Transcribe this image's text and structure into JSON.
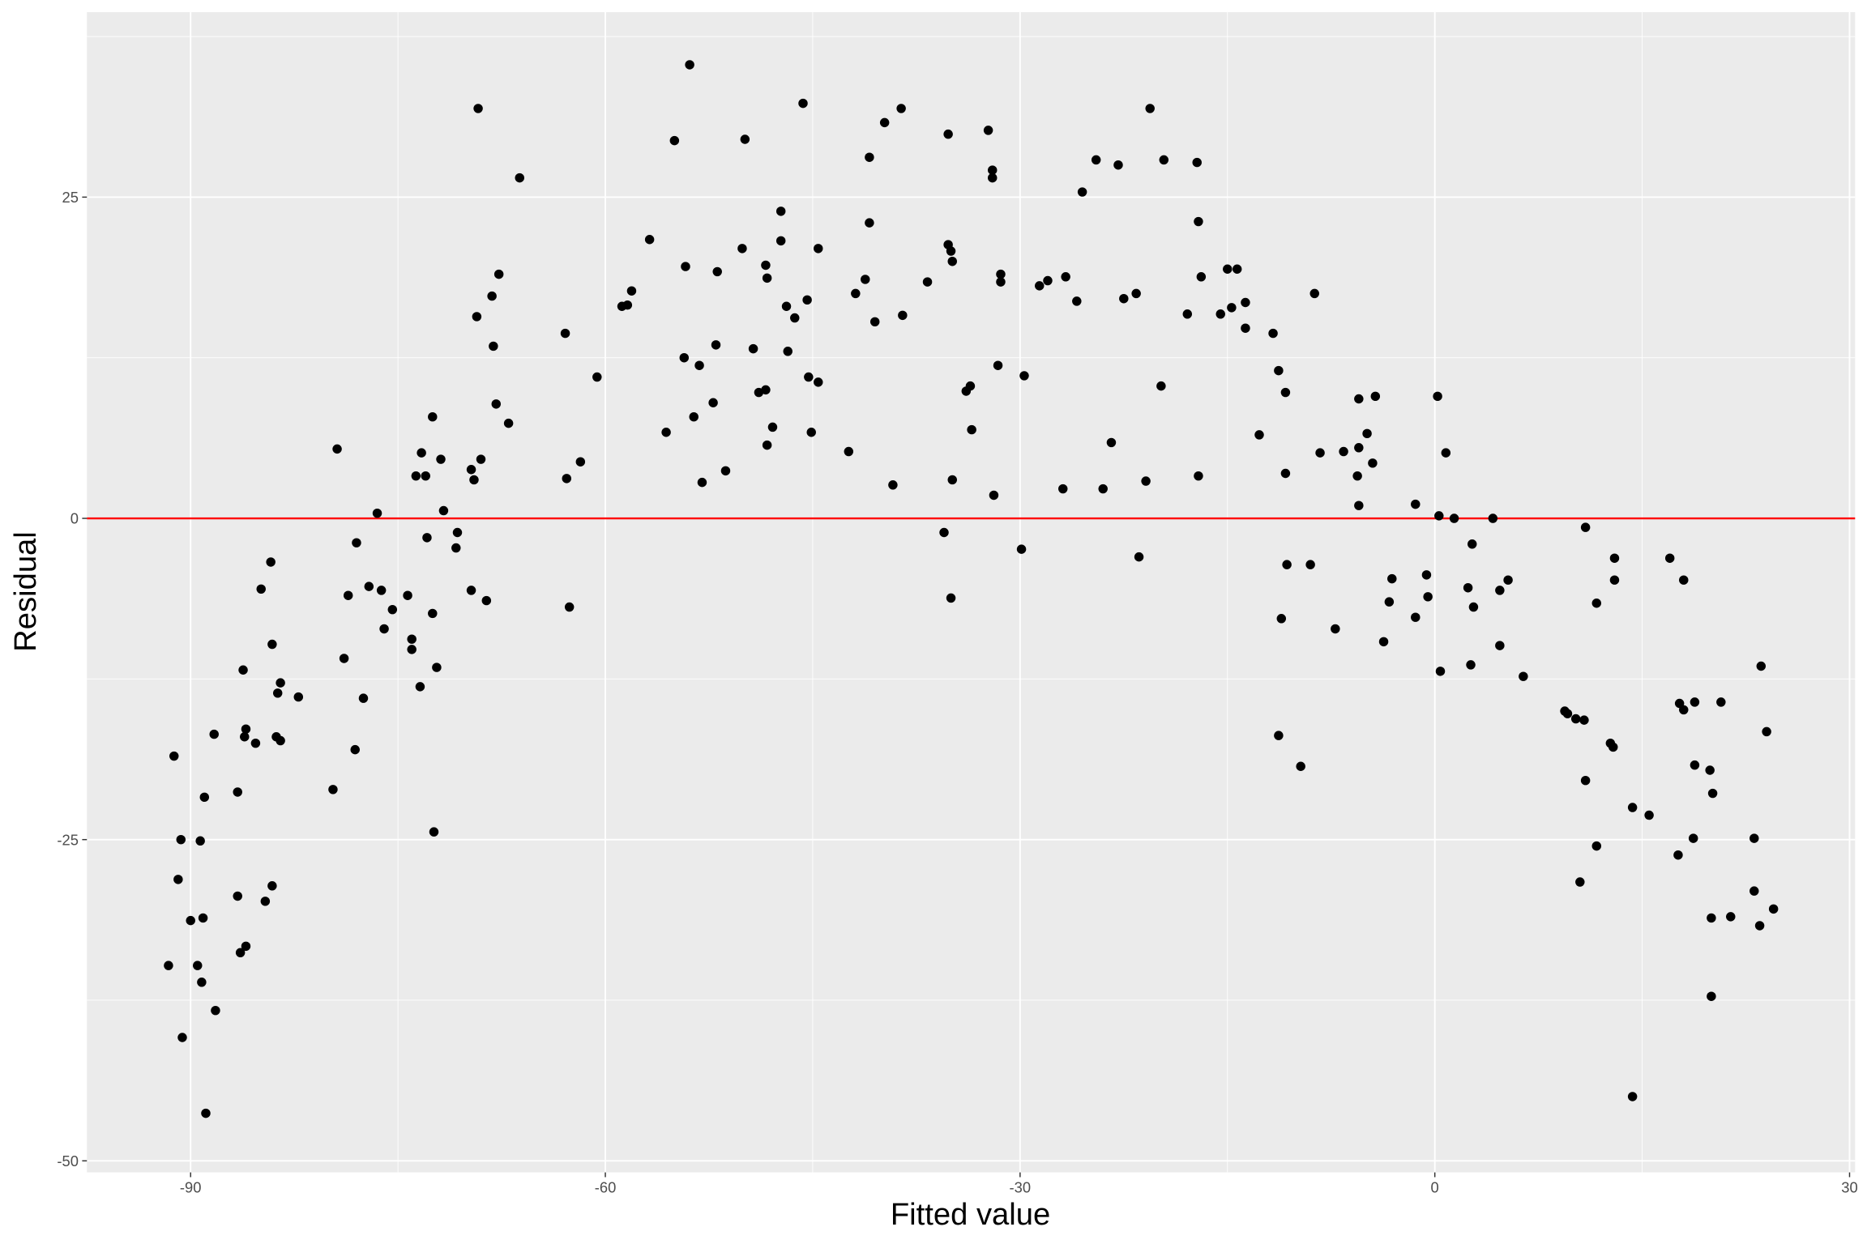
{
  "chart_data": {
    "type": "scatter",
    "title": "",
    "xlabel": "Fitted value",
    "ylabel": "Residual",
    "xlim": [
      -97.5,
      30.4
    ],
    "ylim": [
      -50.9,
      39.4
    ],
    "x_ticks": [
      -90,
      -60,
      -30,
      0,
      30
    ],
    "y_ticks": [
      25,
      0,
      -25,
      -50
    ],
    "x_tick_labels": [
      "-90",
      "-60",
      "-30",
      "0",
      "30"
    ],
    "y_tick_labels": [
      "25",
      "0",
      "-25",
      "-50"
    ],
    "grid": true,
    "colors": {
      "panel": "#EBEBEB",
      "grid": "#FFFFFF",
      "points": "#000000",
      "reference_line": "#FF0000"
    },
    "reference_line": {
      "orientation": "horizontal",
      "y": 0
    },
    "points": [
      [
        -91.6,
        -34.8
      ],
      [
        -91.2,
        -18.5
      ],
      [
        -90.9,
        -28.1
      ],
      [
        -90.7,
        -25.0
      ],
      [
        -90.6,
        -40.4
      ],
      [
        -90.0,
        -31.3
      ],
      [
        -89.5,
        -34.8
      ],
      [
        -89.3,
        -25.1
      ],
      [
        -89.2,
        -36.1
      ],
      [
        -89.1,
        -31.1
      ],
      [
        -89.0,
        -21.7
      ],
      [
        -88.9,
        -46.3
      ],
      [
        -88.3,
        -16.8
      ],
      [
        -88.2,
        -38.3
      ],
      [
        -86.6,
        -21.3
      ],
      [
        -86.6,
        -29.4
      ],
      [
        -86.4,
        -33.8
      ],
      [
        -86.2,
        -11.8
      ],
      [
        -86.0,
        -16.4
      ],
      [
        -86.1,
        -17.0
      ],
      [
        -86.0,
        -33.3
      ],
      [
        -85.3,
        -17.5
      ],
      [
        -84.9,
        -5.5
      ],
      [
        -84.6,
        -29.8
      ],
      [
        -84.2,
        -3.4
      ],
      [
        -84.1,
        -9.8
      ],
      [
        -84.1,
        -28.6
      ],
      [
        -83.8,
        -17.0
      ],
      [
        -83.7,
        -13.6
      ],
      [
        -83.5,
        -12.8
      ],
      [
        -83.5,
        -17.3
      ],
      [
        -82.2,
        -13.9
      ],
      [
        -79.7,
        -21.1
      ],
      [
        -79.4,
        5.4
      ],
      [
        -78.9,
        -10.9
      ],
      [
        -78.6,
        -6.0
      ],
      [
        -78.1,
        -18.0
      ],
      [
        -78.0,
        -1.9
      ],
      [
        -77.5,
        -14.0
      ],
      [
        -77.1,
        -5.3
      ],
      [
        -76.5,
        0.4
      ],
      [
        -76.2,
        -5.6
      ],
      [
        -76.0,
        -8.6
      ],
      [
        -75.4,
        -7.1
      ],
      [
        -74.3,
        -6.0
      ],
      [
        -74.0,
        -9.4
      ],
      [
        -74.0,
        -10.2
      ],
      [
        -73.7,
        3.3
      ],
      [
        -73.4,
        -13.1
      ],
      [
        -73.3,
        5.1
      ],
      [
        -73.0,
        3.3
      ],
      [
        -72.9,
        -1.5
      ],
      [
        -72.5,
        7.9
      ],
      [
        -72.5,
        -7.4
      ],
      [
        -72.4,
        -24.4
      ],
      [
        -72.2,
        -11.6
      ],
      [
        -71.9,
        4.6
      ],
      [
        -71.7,
        0.6
      ],
      [
        -70.8,
        -2.3
      ],
      [
        -70.7,
        -1.1
      ],
      [
        -69.7,
        3.8
      ],
      [
        -69.7,
        -5.6
      ],
      [
        -69.5,
        3.0
      ],
      [
        -69.3,
        15.7
      ],
      [
        -69.2,
        31.9
      ],
      [
        -69.0,
        4.6
      ],
      [
        -68.6,
        -6.4
      ],
      [
        -68.2,
        17.3
      ],
      [
        -68.1,
        13.4
      ],
      [
        -67.9,
        8.9
      ],
      [
        -67.7,
        19.0
      ],
      [
        -67.0,
        7.4
      ],
      [
        -66.2,
        26.5
      ],
      [
        -62.9,
        14.4
      ],
      [
        -62.8,
        3.1
      ],
      [
        -62.6,
        -6.9
      ],
      [
        -61.8,
        4.4
      ],
      [
        -60.6,
        11.0
      ],
      [
        -58.8,
        16.5
      ],
      [
        -58.4,
        16.6
      ],
      [
        -58.1,
        17.7
      ],
      [
        -56.8,
        21.7
      ],
      [
        -55.6,
        6.7
      ],
      [
        -55.0,
        29.4
      ],
      [
        -54.3,
        12.5
      ],
      [
        -54.2,
        19.6
      ],
      [
        -53.9,
        35.3
      ],
      [
        -53.6,
        7.9
      ],
      [
        -53.2,
        11.9
      ],
      [
        -53.0,
        2.8
      ],
      [
        -52.2,
        9.0
      ],
      [
        -52.0,
        13.5
      ],
      [
        -51.9,
        19.2
      ],
      [
        -51.3,
        3.7
      ],
      [
        -50.1,
        21.0
      ],
      [
        -49.9,
        29.5
      ],
      [
        -49.3,
        13.2
      ],
      [
        -48.9,
        9.8
      ],
      [
        -48.4,
        10.0
      ],
      [
        -48.4,
        19.7
      ],
      [
        -48.3,
        18.7
      ],
      [
        -48.3,
        5.7
      ],
      [
        -47.9,
        7.1
      ],
      [
        -47.3,
        23.9
      ],
      [
        -47.3,
        21.6
      ],
      [
        -46.9,
        16.5
      ],
      [
        -46.8,
        13.0
      ],
      [
        -46.3,
        15.6
      ],
      [
        -45.7,
        32.3
      ],
      [
        -45.4,
        17.0
      ],
      [
        -45.3,
        11.0
      ],
      [
        -45.1,
        6.7
      ],
      [
        -44.6,
        10.6
      ],
      [
        -44.6,
        21.0
      ],
      [
        -42.4,
        5.2
      ],
      [
        -41.9,
        17.5
      ],
      [
        -41.2,
        18.6
      ],
      [
        -40.9,
        28.1
      ],
      [
        -40.9,
        23.0
      ],
      [
        -40.5,
        15.3
      ],
      [
        -39.8,
        30.8
      ],
      [
        -39.2,
        2.6
      ],
      [
        -38.6,
        31.9
      ],
      [
        -38.5,
        15.8
      ],
      [
        -36.7,
        18.4
      ],
      [
        -35.5,
        -1.1
      ],
      [
        -35.2,
        29.9
      ],
      [
        -35.2,
        21.3
      ],
      [
        -35.0,
        20.8
      ],
      [
        -35.0,
        -6.2
      ],
      [
        -34.9,
        3.0
      ],
      [
        -34.9,
        20.0
      ],
      [
        -33.9,
        9.9
      ],
      [
        -33.6,
        10.3
      ],
      [
        -33.5,
        6.9
      ],
      [
        -32.3,
        30.2
      ],
      [
        -32.0,
        27.1
      ],
      [
        -32.0,
        26.5
      ],
      [
        -31.9,
        1.8
      ],
      [
        -31.6,
        11.9
      ],
      [
        -31.4,
        19.0
      ],
      [
        -31.4,
        18.4
      ],
      [
        -29.9,
        -2.4
      ],
      [
        -29.7,
        11.1
      ],
      [
        -28.6,
        18.1
      ],
      [
        -28.0,
        18.5
      ],
      [
        -26.9,
        2.3
      ],
      [
        -26.7,
        18.8
      ],
      [
        -25.9,
        16.9
      ],
      [
        -25.5,
        25.4
      ],
      [
        -24.5,
        27.9
      ],
      [
        -24.0,
        2.3
      ],
      [
        -23.4,
        5.9
      ],
      [
        -22.9,
        27.5
      ],
      [
        -22.5,
        17.1
      ],
      [
        -21.6,
        17.5
      ],
      [
        -21.4,
        -3.0
      ],
      [
        -20.9,
        2.9
      ],
      [
        -20.6,
        31.9
      ],
      [
        -19.8,
        10.3
      ],
      [
        -19.6,
        27.9
      ],
      [
        -17.9,
        15.9
      ],
      [
        -17.2,
        27.7
      ],
      [
        -17.1,
        23.1
      ],
      [
        -17.1,
        3.3
      ],
      [
        -16.9,
        18.8
      ],
      [
        -15.5,
        15.9
      ],
      [
        -15.0,
        19.4
      ],
      [
        -14.7,
        16.4
      ],
      [
        -14.3,
        19.4
      ],
      [
        -13.7,
        16.8
      ],
      [
        -13.7,
        14.8
      ],
      [
        -12.7,
        6.5
      ],
      [
        -11.7,
        14.4
      ],
      [
        -11.3,
        11.5
      ],
      [
        -11.3,
        -16.9
      ],
      [
        -11.1,
        -7.8
      ],
      [
        -10.8,
        9.8
      ],
      [
        -10.8,
        3.5
      ],
      [
        -10.7,
        -3.6
      ],
      [
        -9.7,
        -19.3
      ],
      [
        -9.0,
        -3.6
      ],
      [
        -8.7,
        17.5
      ],
      [
        -8.3,
        5.1
      ],
      [
        -7.2,
        -8.6
      ],
      [
        -6.6,
        5.2
      ],
      [
        -5.6,
        3.3
      ],
      [
        -5.5,
        5.5
      ],
      [
        -5.5,
        9.3
      ],
      [
        -5.5,
        1.0
      ],
      [
        -4.9,
        6.6
      ],
      [
        -4.5,
        4.3
      ],
      [
        -4.3,
        9.5
      ],
      [
        -3.7,
        -9.6
      ],
      [
        -3.3,
        -6.5
      ],
      [
        -3.1,
        -4.7
      ],
      [
        -1.4,
        1.1
      ],
      [
        -1.4,
        -7.7
      ],
      [
        -0.6,
        -4.4
      ],
      [
        -0.5,
        -6.1
      ],
      [
        0.2,
        9.5
      ],
      [
        0.3,
        0.2
      ],
      [
        0.4,
        -11.9
      ],
      [
        0.8,
        5.1
      ],
      [
        1.4,
        0.0
      ],
      [
        2.4,
        -5.4
      ],
      [
        2.6,
        -11.4
      ],
      [
        2.7,
        -2.0
      ],
      [
        2.8,
        -6.9
      ],
      [
        4.2,
        0.0
      ],
      [
        4.7,
        -9.9
      ],
      [
        4.7,
        -5.6
      ],
      [
        5.3,
        -4.8
      ],
      [
        6.4,
        -12.3
      ],
      [
        9.4,
        -15.0
      ],
      [
        9.6,
        -15.2
      ],
      [
        10.2,
        -15.6
      ],
      [
        10.5,
        -28.3
      ],
      [
        10.8,
        -15.7
      ],
      [
        10.9,
        -20.4
      ],
      [
        10.9,
        -0.7
      ],
      [
        11.7,
        -6.6
      ],
      [
        11.7,
        -25.5
      ],
      [
        12.7,
        -17.5
      ],
      [
        12.9,
        -17.8
      ],
      [
        13.0,
        -4.8
      ],
      [
        13.0,
        -3.1
      ],
      [
        14.3,
        -22.5
      ],
      [
        14.3,
        -45.0
      ],
      [
        15.5,
        -23.1
      ],
      [
        17.0,
        -3.1
      ],
      [
        17.6,
        -26.2
      ],
      [
        17.7,
        -14.4
      ],
      [
        18.0,
        -4.8
      ],
      [
        18.0,
        -14.9
      ],
      [
        18.7,
        -24.9
      ],
      [
        18.8,
        -14.3
      ],
      [
        18.8,
        -19.2
      ],
      [
        19.9,
        -19.6
      ],
      [
        20.0,
        -31.1
      ],
      [
        20.0,
        -37.2
      ],
      [
        20.1,
        -21.4
      ],
      [
        20.7,
        -14.3
      ],
      [
        21.4,
        -31.0
      ],
      [
        23.1,
        -24.9
      ],
      [
        23.1,
        -29.0
      ],
      [
        23.5,
        -31.7
      ],
      [
        23.6,
        -11.5
      ],
      [
        24.0,
        -16.6
      ],
      [
        24.5,
        -30.4
      ]
    ]
  }
}
